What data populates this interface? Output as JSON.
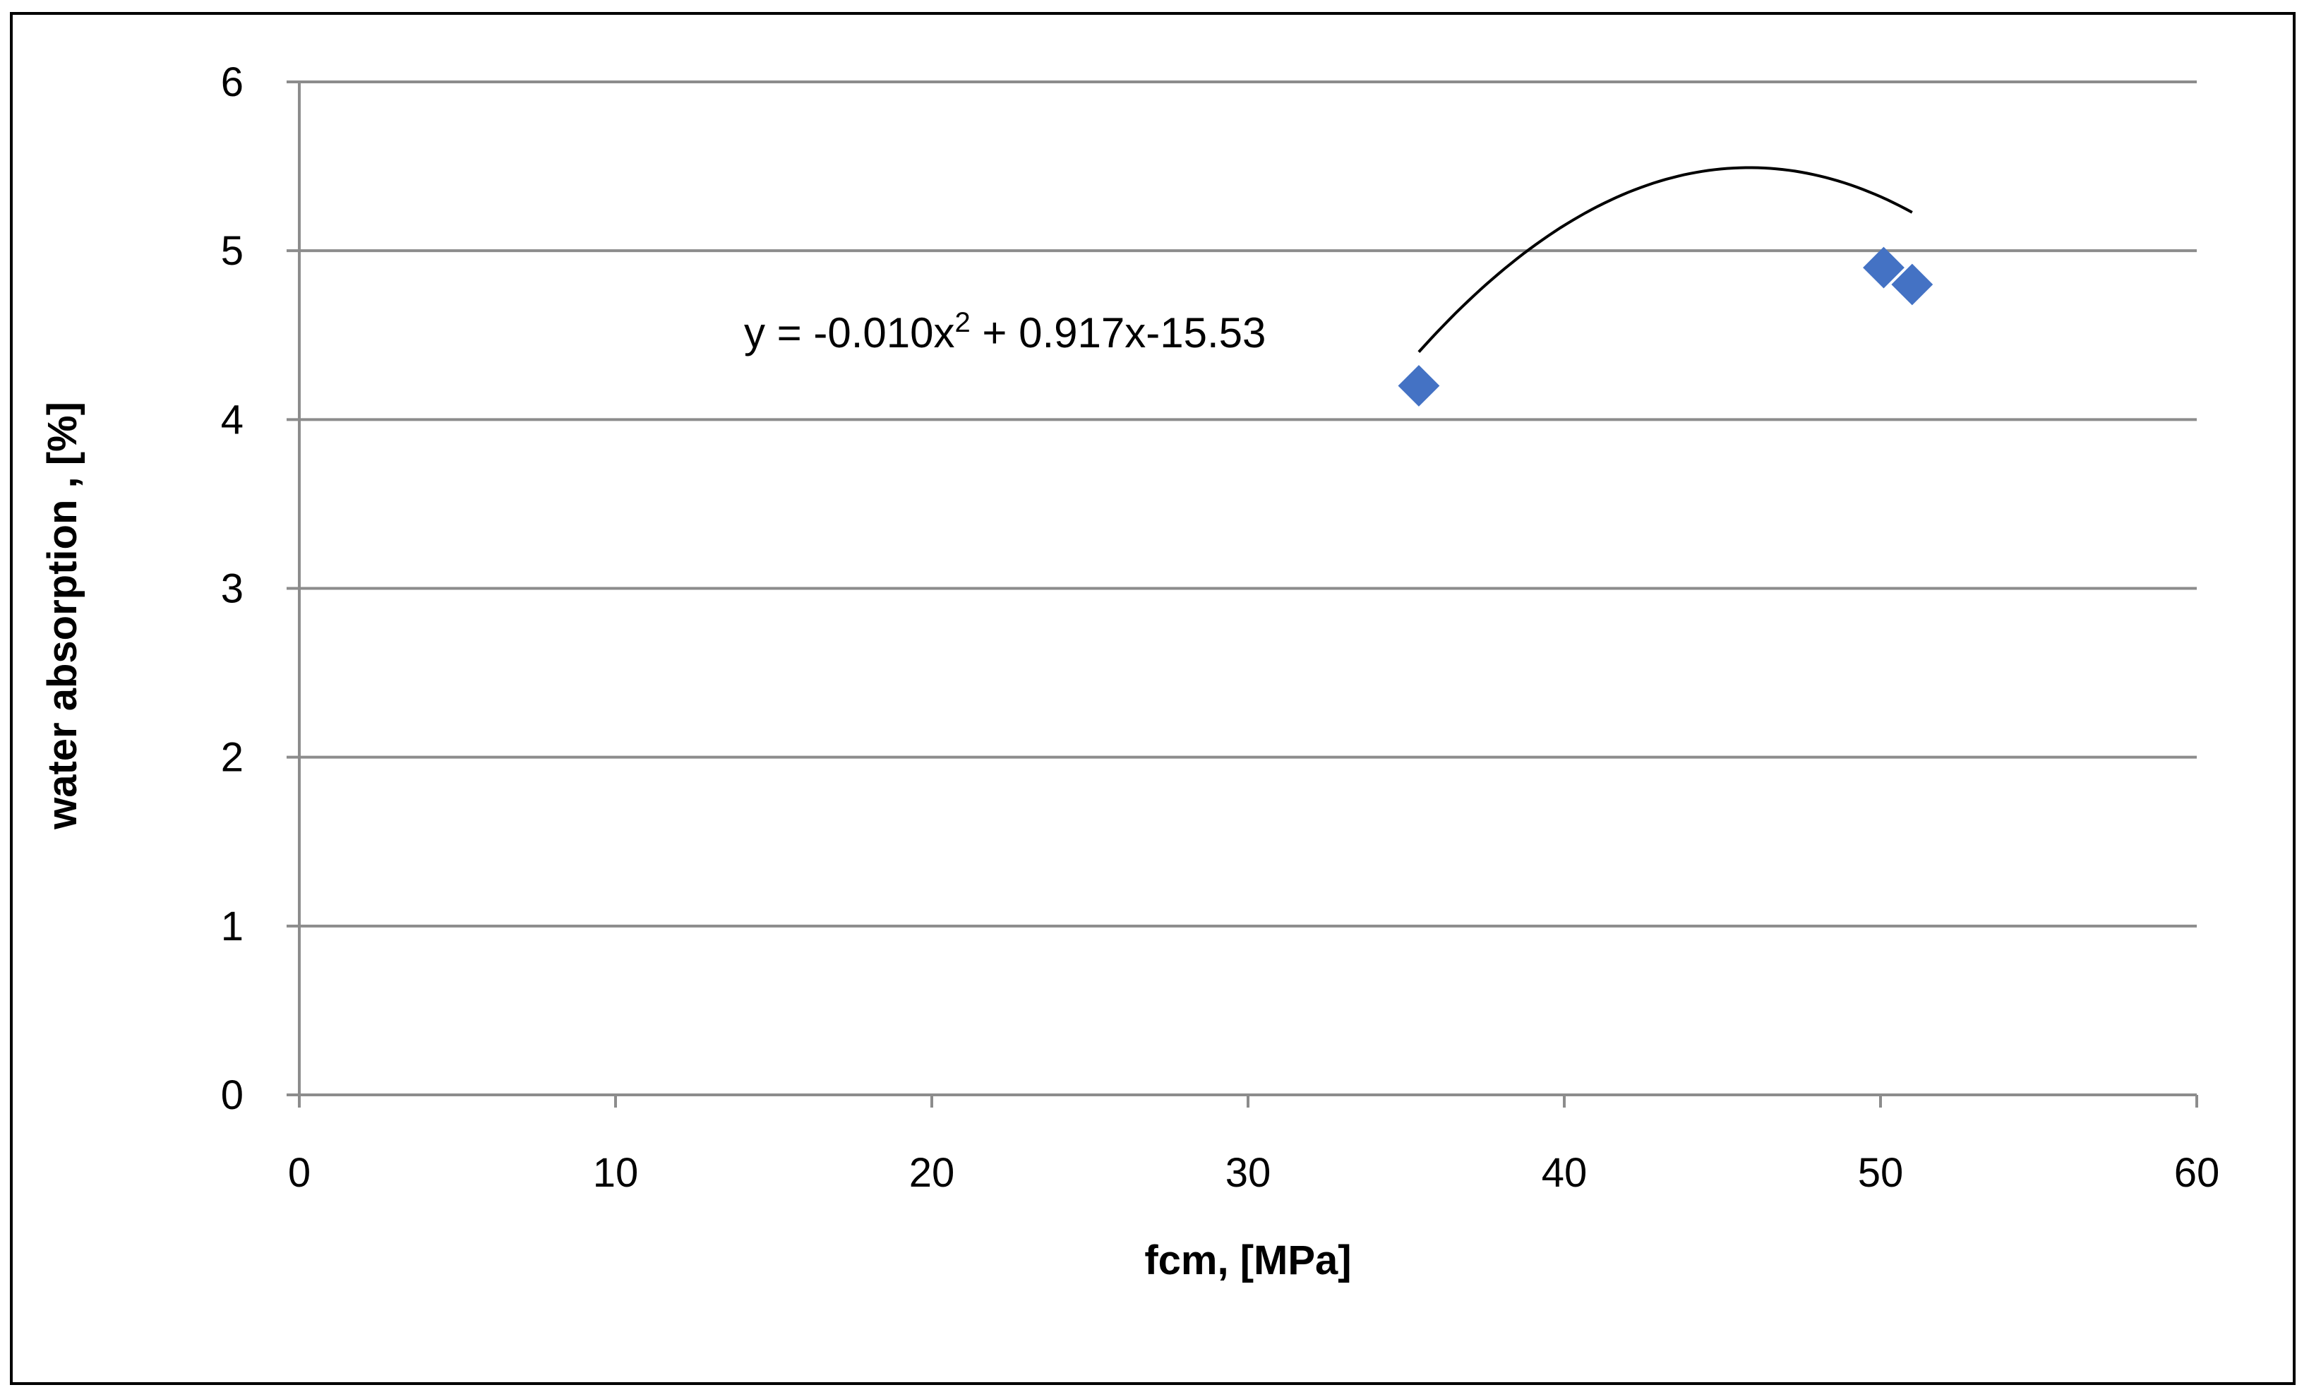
{
  "chart_data": {
    "type": "scatter",
    "xlabel": "fcm, [MPa]",
    "ylabel": "water absorption , [%]",
    "xlim": [
      0,
      60
    ],
    "ylim": [
      0,
      6
    ],
    "x_ticks": [
      0,
      10,
      20,
      30,
      40,
      50,
      60
    ],
    "y_ticks": [
      0,
      1,
      2,
      3,
      4,
      5,
      6
    ],
    "grid": "horizontal",
    "legend": "none",
    "series": [
      {
        "points": [
          {
            "x": 35.4,
            "y": 4.2
          },
          {
            "x": 50.1,
            "y": 4.9
          },
          {
            "x": 51.0,
            "y": 4.8
          }
        ],
        "marker": "diamond",
        "color": "#4472C4"
      }
    ],
    "trendline": {
      "type": "polynomial",
      "order": 2,
      "coefficients": [
        -0.01,
        0.917,
        -15.53
      ],
      "x_range": [
        35.4,
        51.0
      ],
      "color": "#000000",
      "equation": {
        "prefix": "y = -0.010x",
        "superscript": "2",
        "suffix": " + 0.917x-15.53"
      }
    }
  }
}
